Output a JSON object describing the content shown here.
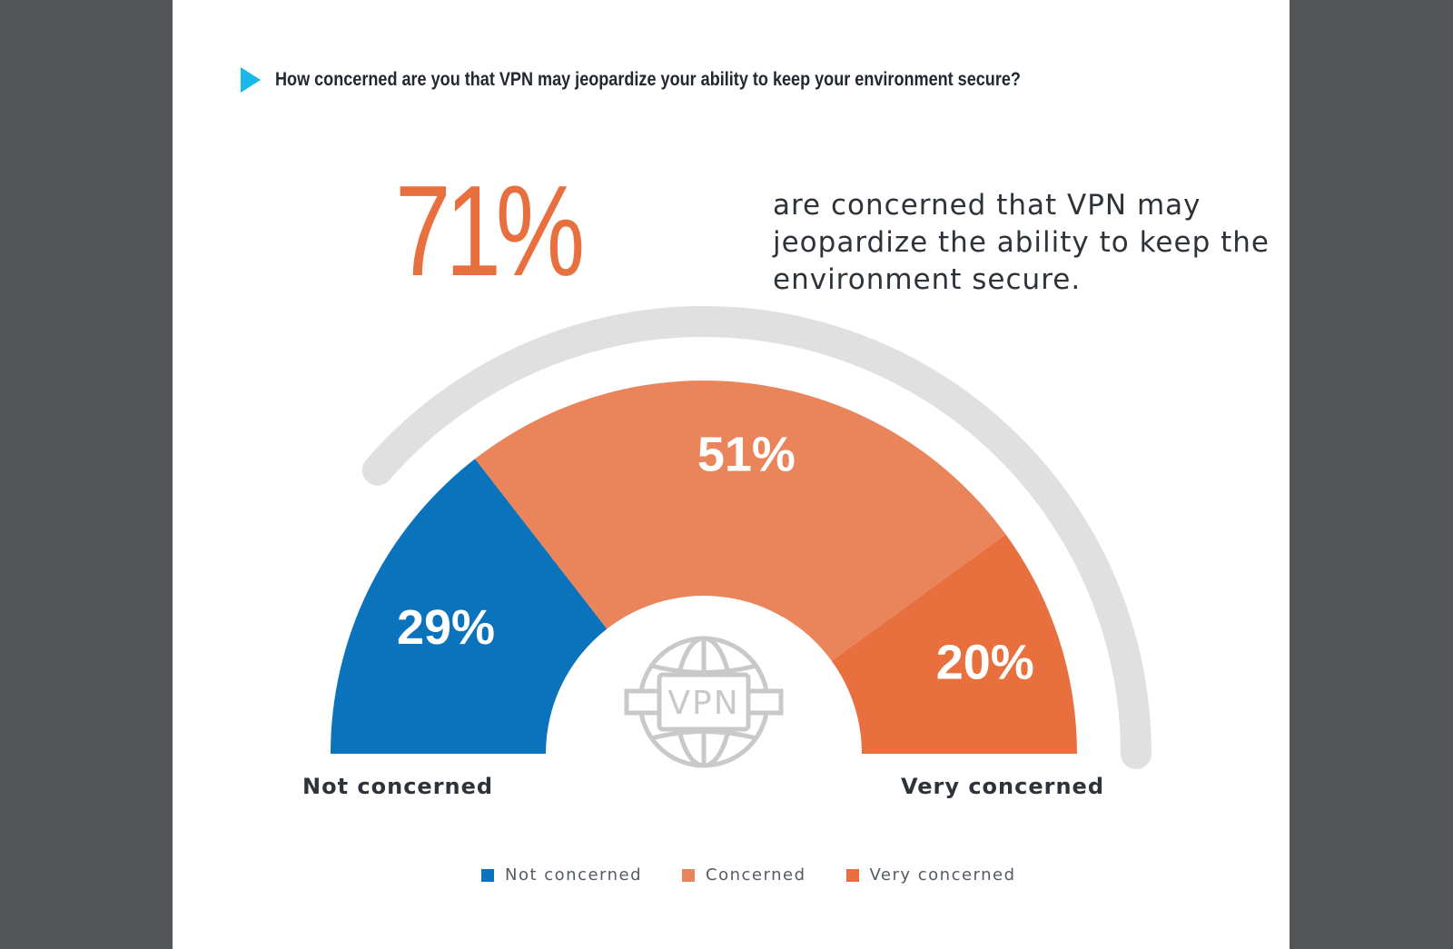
{
  "question": "How concerned are you that VPN may jeopardize your ability to keep your environment secure?",
  "headline": {
    "stat": "71%",
    "text": "are concerned that VPN may jeopardize the ability to keep the environment secure."
  },
  "chart_data": {
    "type": "pie",
    "variant": "semicircle-donut",
    "categories": [
      "Not concerned",
      "Concerned",
      "Very concerned"
    ],
    "values": [
      29,
      51,
      20
    ],
    "labels": [
      "29%",
      "51%",
      "20%"
    ],
    "colors": [
      "#0b72bc",
      "#ea855b",
      "#e8703f"
    ],
    "axis_left_label": "Not concerned",
    "axis_right_label": "Very concerned",
    "center_icon": "vpn-globe-icon",
    "center_icon_text": "VPN",
    "legend": [
      {
        "label": "Not concerned",
        "color": "#0b72bc"
      },
      {
        "label": "Concerned",
        "color": "#ea855b"
      },
      {
        "label": "Very concerned",
        "color": "#e8703f"
      }
    ],
    "legend_position": "bottom-center"
  }
}
